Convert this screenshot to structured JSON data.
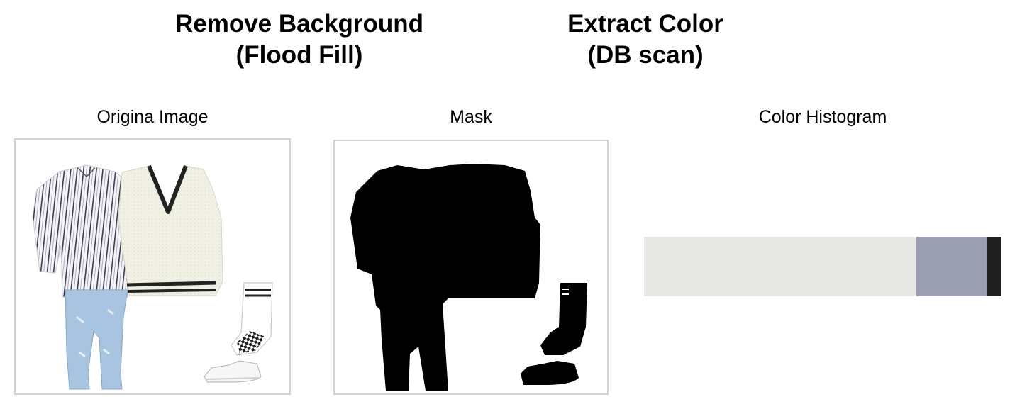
{
  "headings": {
    "remove_background": {
      "line1": "Remove Background",
      "line2": "(Flood Fill)"
    },
    "extract_color": {
      "line1": "Extract Color",
      "line2": "(DB scan)"
    }
  },
  "panels": {
    "original": {
      "caption": "Origina Image"
    },
    "mask": {
      "caption": "Mask"
    },
    "histogram": {
      "caption": "Color Histogram"
    }
  },
  "color_histogram": {
    "segments": [
      {
        "color": "#e8e8e6",
        "fraction": 0.762
      },
      {
        "color": "#9a9eb0",
        "fraction": 0.198
      },
      {
        "color": "#1e1e1e",
        "fraction": 0.04
      }
    ]
  },
  "colors": {
    "frame_border": "#d2d2d2",
    "mask_fill": "#000000"
  }
}
